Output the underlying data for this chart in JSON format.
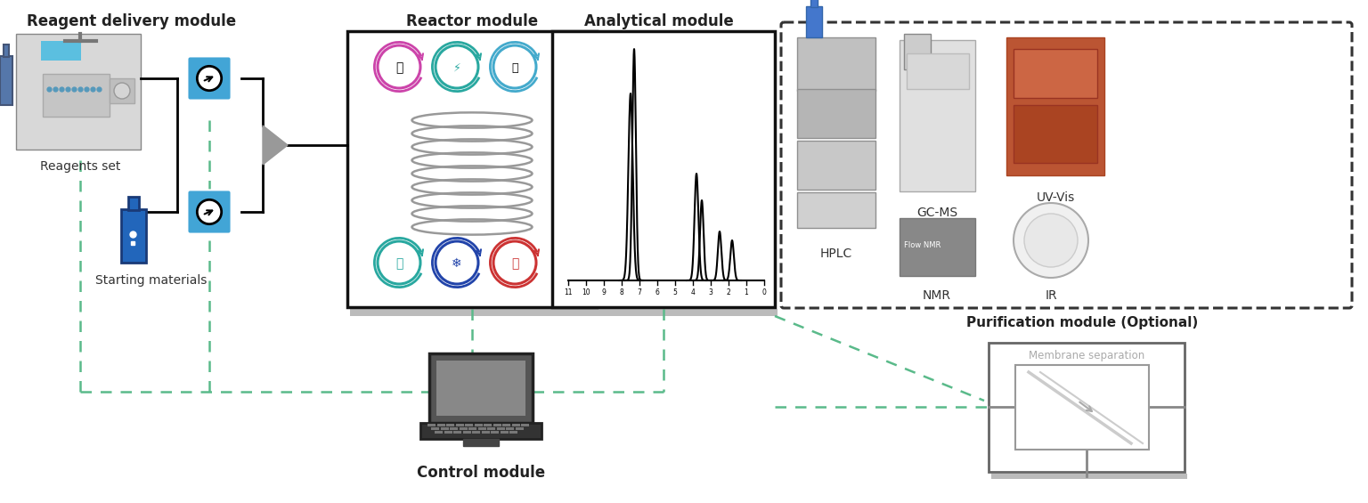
{
  "bg_color": "#ffffff",
  "module_titles": {
    "reagent_delivery": "Reagent delivery module",
    "reactor": "Reactor module",
    "analytical": "Analytical module",
    "purification": "Purification module (Optional)",
    "control": "Control module"
  },
  "labels": {
    "reagents_set": "Reagents set",
    "starting_materials": "Starting materials",
    "hplc": "HPLC",
    "nmr": "NMR",
    "gcms": "GC-MS",
    "uvvis": "UV-Vis",
    "ir": "IR",
    "membrane": "Membrane separation"
  },
  "colors": {
    "blue_pump": "#42a5d6",
    "dark_gray": "#888888",
    "light_gray": "#e0e0e0",
    "green_dashed": "#5aba8a",
    "magenta": "#cc44aa",
    "teal": "#29a8a0",
    "cyan": "#44aacc",
    "red": "#cc3333",
    "dark_blue": "#2244aa",
    "coil_gray": "#999999",
    "black": "#222222",
    "text_dark": "#333333",
    "shadow": "#bbbbbb"
  }
}
